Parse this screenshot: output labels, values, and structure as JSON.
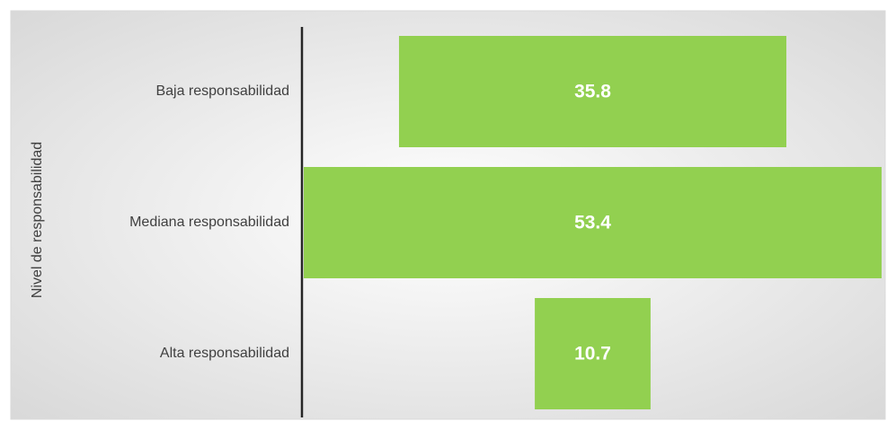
{
  "chart_data": {
    "type": "funnel",
    "ylabel": "Nivel de responsabilidad",
    "categories": [
      "Baja responsabilidad",
      "Mediana responsabilidad",
      "Alta responsabilidad"
    ],
    "values": [
      35.8,
      53.4,
      10.7
    ],
    "color": "#92d050"
  }
}
